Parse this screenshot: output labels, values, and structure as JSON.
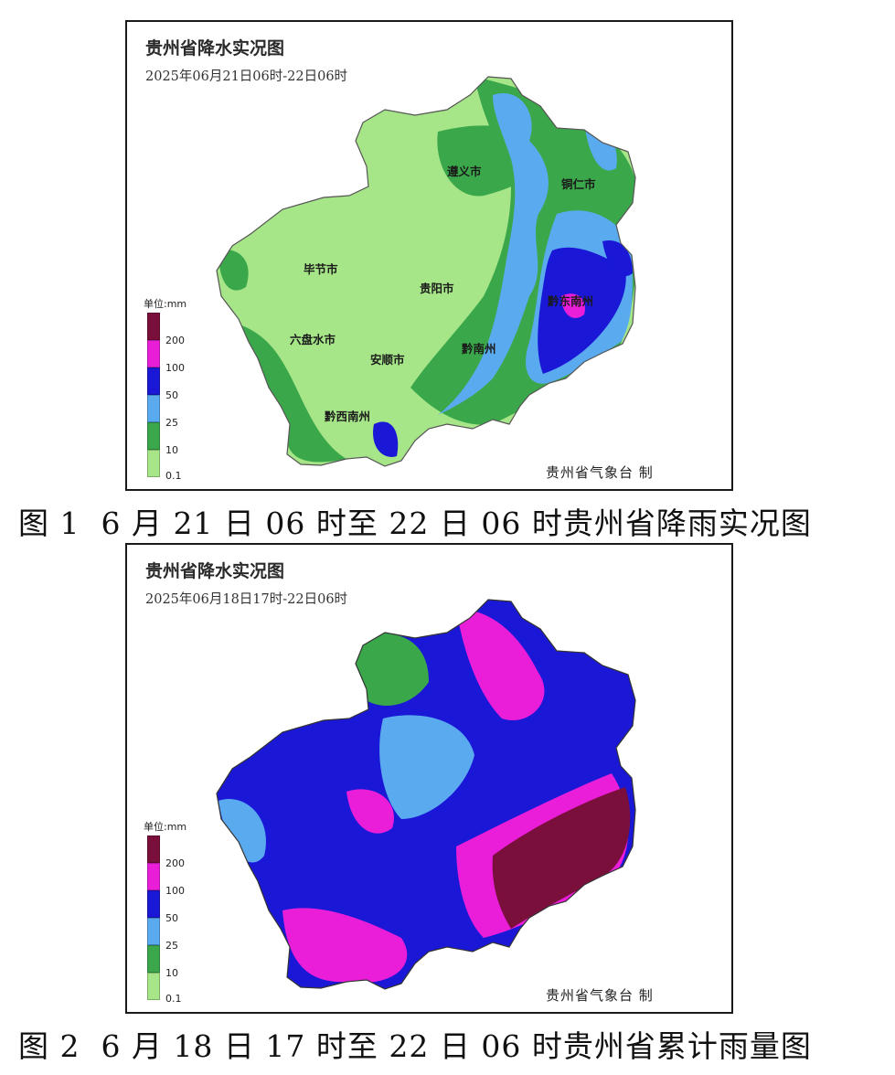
{
  "maps": [
    {
      "title": "贵州省降水实况图",
      "time_range": "2025年06月21日06时-22日06时",
      "credit": "贵州省气象台 制",
      "caption": "图 1  6 月 21 日 06 时至 22 日 06 时贵州省降雨实况图"
    },
    {
      "title": "贵州省降水实况图",
      "time_range": "2025年06月18日17时-22日06时",
      "credit": "贵州省气象台 制",
      "caption": "图 2  6 月 18 日 17 时至 22 日 06 时贵州省累计雨量图"
    }
  ],
  "legend": {
    "unit": "单位:mm",
    "levels": [
      "200",
      "100",
      "50",
      "25",
      "10",
      "0.1"
    ],
    "colors": [
      "#7a0f3c",
      "#ea1ed8",
      "#1a18d6",
      "#5aaaf0",
      "#3aa84a",
      "#a6e688"
    ]
  },
  "cities": [
    "遵义市",
    "铜仁市",
    "毕节市",
    "贵阳市",
    "六盘水市",
    "安顺市",
    "黔南州",
    "黔西南州",
    "黔东南州"
  ]
}
